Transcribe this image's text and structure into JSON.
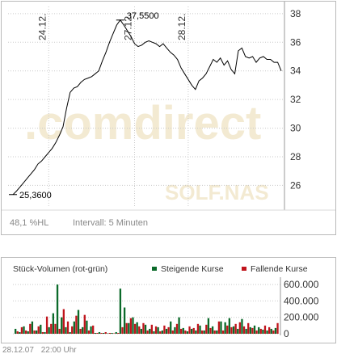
{
  "price_panel": {
    "watermark_brand": ".comdirect",
    "watermark_symbol": "SOLF.NAS",
    "stat_value": "48,1",
    "stat_unit": "%HL",
    "interval_label": "Intervall: 5 Minuten"
  },
  "volume_panel": {
    "title": "Stück-Volumen (rot-grün)",
    "legend_up": "Steigende Kurse",
    "legend_down": "Fallende Kurse"
  },
  "footer": {
    "date": "28.12.07",
    "time": "22:00 Uhr"
  },
  "colors": {
    "price_line": "#000000",
    "rising": "#0b6a2a",
    "falling": "#c0141c",
    "grid": "#c9c9c9",
    "watermark": "#f3ead2"
  },
  "chart_data": [
    {
      "type": "line",
      "title": "",
      "ylim": [
        24.5,
        38.5
      ],
      "yticks": [
        26,
        28,
        30,
        32,
        34,
        36,
        38
      ],
      "ytick_labels": [
        "26",
        "28",
        "30",
        "32",
        "34",
        "36",
        "38"
      ],
      "x_axis_labels": [
        "24.12.",
        "27.12.",
        "28.12."
      ],
      "annotations": [
        {
          "label": "37,5500",
          "y": 37.55
        },
        {
          "label": "25,3600",
          "y": 25.36
        }
      ],
      "series": [
        {
          "y": [
            25.36,
            25.6,
            25.9,
            26.2,
            26.5,
            26.8,
            27.1,
            27.5,
            27.7,
            28.0,
            28.3,
            28.6,
            29.0,
            29.5,
            30.1,
            31.4,
            32.5,
            32.8,
            32.9,
            33.2,
            33.4,
            33.5,
            33.6,
            33.8,
            34.0,
            34.7,
            35.3,
            36.0,
            36.6,
            37.2,
            37.55,
            37.2,
            36.8,
            36.4,
            35.9,
            35.7,
            35.8,
            36.0,
            36.1,
            36.0,
            35.9,
            35.7,
            35.9,
            35.6,
            35.3,
            35.1,
            34.8,
            34.2,
            33.8,
            33.4,
            33.0,
            32.7,
            33.3,
            33.5,
            33.8,
            34.3,
            34.8,
            34.6,
            34.9,
            34.4,
            34.7,
            34.1,
            33.8,
            35.4,
            35.6,
            35.0,
            34.9,
            35.0,
            34.6,
            34.9,
            35.0,
            34.8,
            34.8,
            34.6,
            34.6,
            34.0
          ],
          "color": "#000000"
        }
      ]
    },
    {
      "type": "bar",
      "title": "Stück-Volumen (rot-grün)",
      "ylim": [
        0,
        650000
      ],
      "yticks": [
        0,
        200000,
        400000,
        600000
      ],
      "ytick_labels": [
        "0",
        "200.000",
        "400.000",
        "600.000"
      ],
      "series": [
        {
          "name": "Steigende Kurse",
          "color": "#0b6a2a",
          "values": [
            60000,
            20000,
            90000,
            30000,
            150000,
            40000,
            110000,
            20000,
            80000,
            250000,
            600000,
            200000,
            80000,
            20000,
            150000,
            290000,
            80000,
            160000,
            90000,
            10000,
            20000,
            10000,
            5000,
            10000,
            20000,
            550000,
            320000,
            130000,
            200000,
            140000,
            60000,
            110000,
            60000,
            30000,
            80000,
            40000,
            60000,
            150000,
            80000,
            200000,
            70000,
            30000,
            60000,
            40000,
            100000,
            40000,
            190000,
            90000,
            40000,
            150000,
            140000,
            190000,
            90000,
            60000,
            180000,
            60000,
            80000,
            100000,
            80000,
            50000,
            40000,
            60000,
            70000
          ]
        },
        {
          "name": "Fallende Kurse",
          "color": "#c0141c",
          "values": [
            30000,
            80000,
            40000,
            120000,
            40000,
            90000,
            20000,
            210000,
            120000,
            120000,
            60000,
            300000,
            150000,
            90000,
            220000,
            60000,
            230000,
            40000,
            100000,
            10000,
            10000,
            20000,
            10000,
            5000,
            10000,
            80000,
            130000,
            190000,
            120000,
            90000,
            130000,
            40000,
            110000,
            90000,
            30000,
            100000,
            80000,
            40000,
            120000,
            60000,
            40000,
            90000,
            70000,
            120000,
            40000,
            110000,
            70000,
            40000,
            150000,
            40000,
            100000,
            80000,
            120000,
            140000,
            90000,
            130000,
            70000,
            40000,
            60000,
            100000,
            80000,
            40000,
            130000
          ]
        }
      ]
    }
  ]
}
